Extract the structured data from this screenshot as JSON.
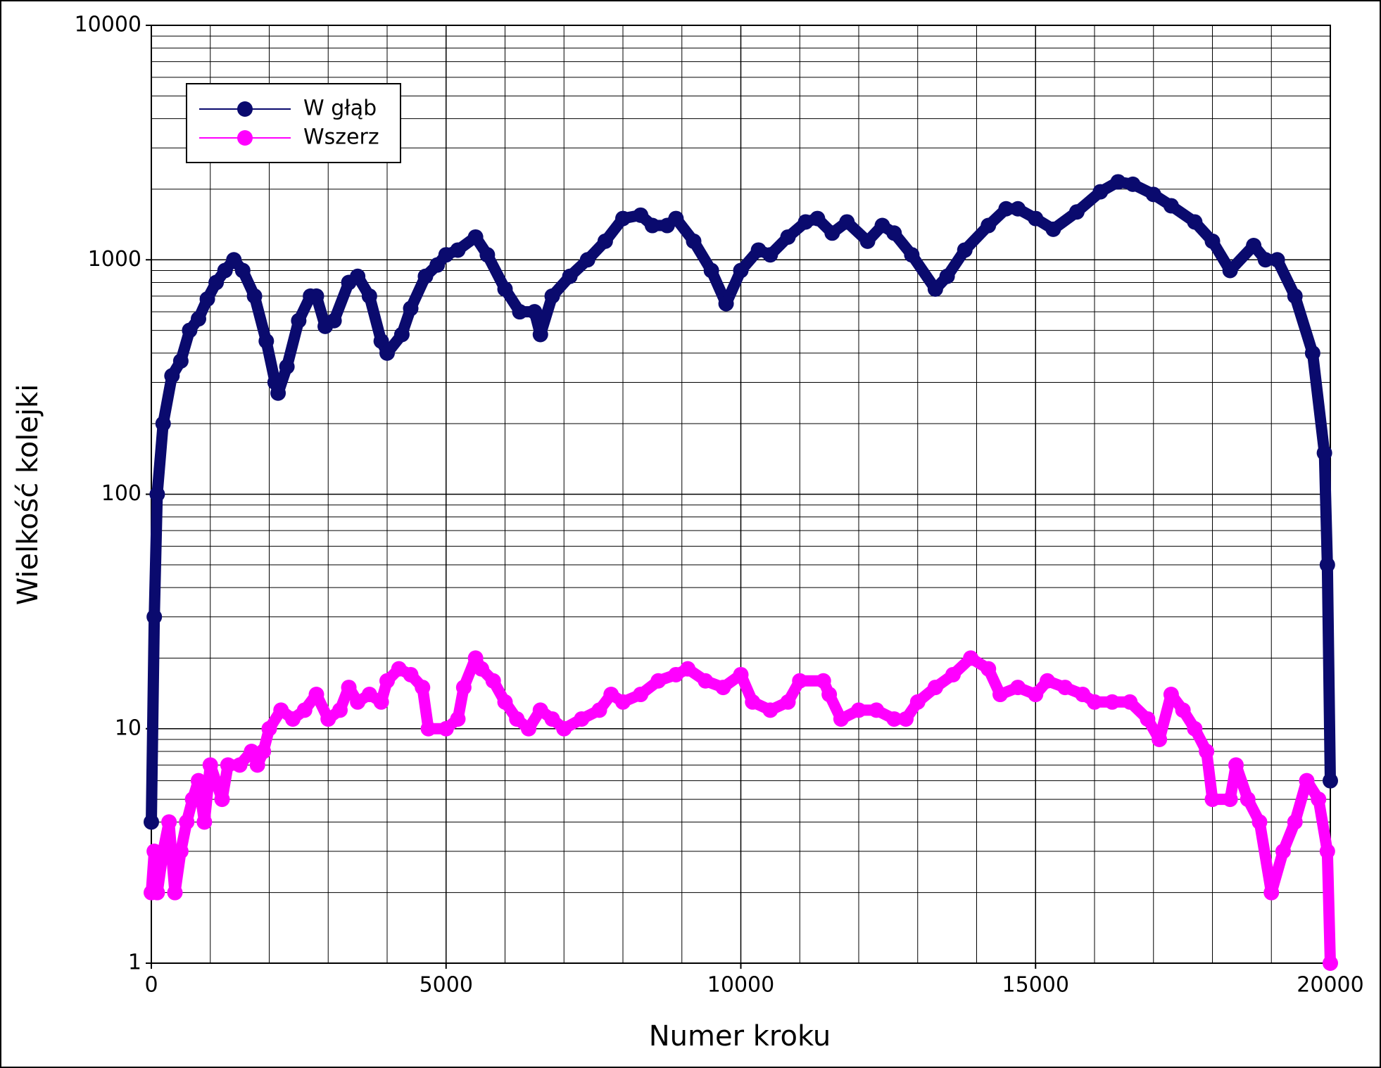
{
  "chart_data": {
    "type": "line",
    "xlabel": "Numer kroku",
    "ylabel": "Wielkość kolejki",
    "xlim": [
      0,
      20000
    ],
    "xticks": [
      0,
      5000,
      10000,
      15000,
      20000
    ],
    "ylim": [
      1,
      10000
    ],
    "yticks": [
      1,
      10,
      100,
      1000,
      10000
    ],
    "yscale": "log",
    "grid": true,
    "minor_grid": true,
    "legend": "upper left",
    "series": [
      {
        "name": "W głąb",
        "color": "#0a0a6e",
        "x": [
          0,
          50,
          100,
          200,
          350,
          500,
          650,
          800,
          950,
          1100,
          1250,
          1400,
          1550,
          1750,
          1950,
          2100,
          2150,
          2300,
          2500,
          2700,
          2800,
          2950,
          3100,
          3350,
          3500,
          3700,
          3900,
          4000,
          4250,
          4400,
          4650,
          4850,
          5000,
          5200,
          5500,
          5700,
          6000,
          6250,
          6500,
          6600,
          6800,
          7100,
          7400,
          7700,
          8000,
          8300,
          8500,
          8750,
          8900,
          9200,
          9500,
          9750,
          10000,
          10300,
          10500,
          10800,
          11100,
          11300,
          11550,
          11800,
          12150,
          12400,
          12600,
          12900,
          13300,
          13500,
          13800,
          14200,
          14500,
          14700,
          15000,
          15300,
          15700,
          16100,
          16400,
          16650,
          17000,
          17300,
          17700,
          18000,
          18300,
          18700,
          18900,
          19100,
          19400,
          19700,
          19900,
          19950,
          20000
        ],
        "values": [
          4,
          30,
          100,
          200,
          320,
          370,
          500,
          560,
          680,
          800,
          900,
          1000,
          900,
          700,
          450,
          300,
          270,
          350,
          550,
          700,
          700,
          520,
          550,
          800,
          850,
          700,
          450,
          400,
          480,
          620,
          850,
          950,
          1050,
          1100,
          1250,
          1050,
          750,
          600,
          600,
          480,
          700,
          850,
          1000,
          1200,
          1500,
          1550,
          1400,
          1400,
          1500,
          1200,
          900,
          650,
          900,
          1100,
          1050,
          1250,
          1450,
          1500,
          1300,
          1450,
          1200,
          1400,
          1300,
          1050,
          750,
          850,
          1100,
          1400,
          1650,
          1650,
          1500,
          1350,
          1600,
          1950,
          2150,
          2100,
          1900,
          1700,
          1450,
          1200,
          900,
          1150,
          1000,
          1000,
          700,
          400,
          150,
          50,
          6
        ]
      },
      {
        "name": "Wszerz",
        "color": "#ff00ff",
        "x": [
          0,
          50,
          100,
          200,
          300,
          400,
          500,
          600,
          700,
          800,
          900,
          1000,
          1200,
          1300,
          1500,
          1700,
          1800,
          1900,
          2000,
          2200,
          2400,
          2600,
          2800,
          3000,
          3200,
          3350,
          3500,
          3700,
          3900,
          4000,
          4200,
          4400,
          4600,
          4700,
          5000,
          5200,
          5300,
          5500,
          5600,
          5800,
          6000,
          6200,
          6400,
          6600,
          6800,
          7000,
          7300,
          7600,
          7800,
          8000,
          8300,
          8600,
          8900,
          9100,
          9400,
          9700,
          10000,
          10200,
          10500,
          10800,
          11000,
          11400,
          11500,
          11700,
          12000,
          12300,
          12600,
          12800,
          13000,
          13300,
          13600,
          13900,
          14200,
          14400,
          14700,
          15000,
          15200,
          15500,
          15800,
          16000,
          16300,
          16600,
          16900,
          17100,
          17300,
          17500,
          17700,
          17900,
          18000,
          18300,
          18400,
          18600,
          18800,
          19000,
          19200,
          19400,
          19600,
          19800,
          19950,
          20000
        ],
        "values": [
          2,
          3,
          2,
          3,
          4,
          2,
          3,
          4,
          5,
          6,
          4,
          7,
          5,
          7,
          7,
          8,
          7,
          8,
          10,
          12,
          11,
          12,
          14,
          11,
          12,
          15,
          13,
          14,
          13,
          16,
          18,
          17,
          15,
          10,
          10,
          11,
          15,
          20,
          18,
          16,
          13,
          11,
          10,
          12,
          11,
          10,
          11,
          12,
          14,
          13,
          14,
          16,
          17,
          18,
          16,
          15,
          17,
          13,
          12,
          13,
          16,
          16,
          14,
          11,
          12,
          12,
          11,
          11,
          13,
          15,
          17,
          20,
          18,
          14,
          15,
          14,
          16,
          15,
          14,
          13,
          13,
          13,
          11,
          9,
          14,
          12,
          10,
          8,
          5,
          5,
          7,
          5,
          4,
          2,
          3,
          4,
          6,
          5,
          3,
          1
        ]
      }
    ]
  }
}
